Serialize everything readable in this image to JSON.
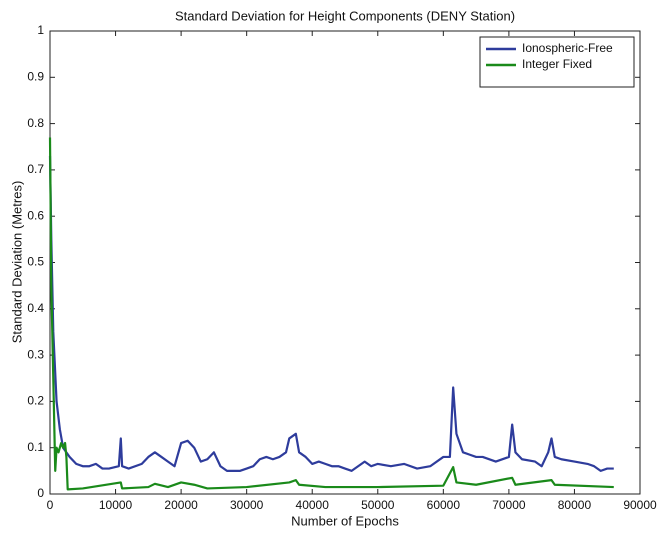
{
  "chart_data": {
    "type": "line",
    "title": "Standard Deviation for Height Components (DENY Station)",
    "xlabel": "Number of Epochs",
    "ylabel": "Standard Deviation (Metres)",
    "xlim": [
      0,
      90000
    ],
    "ylim": [
      0,
      1
    ],
    "xticks": [
      0,
      10000,
      20000,
      30000,
      40000,
      50000,
      60000,
      70000,
      80000,
      90000
    ],
    "yticks": [
      0,
      0.1,
      0.2,
      0.3,
      0.4,
      0.5,
      0.6,
      0.7,
      0.8,
      0.9,
      1
    ],
    "legend": "upper right",
    "series": [
      {
        "name": "Ionospheric-Free",
        "color": "#2e3c9c",
        "x": [
          0,
          200,
          500,
          1000,
          1500,
          2000,
          3000,
          4000,
          5000,
          6000,
          7000,
          8000,
          9000,
          10500,
          10800,
          11000,
          12000,
          14000,
          15000,
          16000,
          17000,
          18000,
          19000,
          20000,
          21000,
          22000,
          23000,
          24000,
          25000,
          26000,
          27000,
          29000,
          30000,
          31000,
          32000,
          33000,
          34000,
          35000,
          36000,
          36500,
          37500,
          38000,
          39000,
          40000,
          41000,
          42000,
          43000,
          44000,
          45000,
          46000,
          47000,
          48000,
          49000,
          50000,
          52000,
          54000,
          56000,
          58000,
          60000,
          61000,
          61500,
          62000,
          63000,
          64000,
          65000,
          66000,
          68000,
          70000,
          70500,
          71000,
          72000,
          74000,
          75000,
          76000,
          76500,
          77000,
          78000,
          80000,
          82000,
          83000,
          84000,
          85000,
          86000
        ],
        "values": [
          0.73,
          0.55,
          0.35,
          0.2,
          0.14,
          0.1,
          0.08,
          0.065,
          0.06,
          0.06,
          0.065,
          0.055,
          0.055,
          0.06,
          0.12,
          0.06,
          0.055,
          0.065,
          0.08,
          0.09,
          0.08,
          0.07,
          0.06,
          0.11,
          0.115,
          0.1,
          0.07,
          0.075,
          0.09,
          0.06,
          0.05,
          0.05,
          0.055,
          0.06,
          0.075,
          0.08,
          0.075,
          0.08,
          0.09,
          0.12,
          0.13,
          0.09,
          0.08,
          0.065,
          0.07,
          0.065,
          0.06,
          0.06,
          0.055,
          0.05,
          0.06,
          0.07,
          0.06,
          0.065,
          0.06,
          0.065,
          0.055,
          0.06,
          0.08,
          0.08,
          0.23,
          0.13,
          0.09,
          0.085,
          0.08,
          0.08,
          0.07,
          0.08,
          0.15,
          0.09,
          0.075,
          0.07,
          0.06,
          0.09,
          0.12,
          0.08,
          0.075,
          0.07,
          0.065,
          0.06,
          0.05,
          0.055,
          0.055
        ]
      },
      {
        "name": "Integer Fixed",
        "color": "#1a8a1a",
        "x": [
          0,
          200,
          500,
          800,
          1000,
          1300,
          1700,
          2000,
          2300,
          2500,
          2700,
          5000,
          10800,
          11000,
          15000,
          16000,
          18000,
          20000,
          22000,
          24000,
          30000,
          36500,
          37500,
          38000,
          42000,
          50000,
          60000,
          61500,
          62000,
          65000,
          70500,
          71000,
          76500,
          77000,
          86000
        ],
        "values": [
          0.77,
          0.45,
          0.25,
          0.05,
          0.1,
          0.09,
          0.11,
          0.1,
          0.11,
          0.08,
          0.01,
          0.012,
          0.025,
          0.012,
          0.015,
          0.022,
          0.015,
          0.025,
          0.02,
          0.012,
          0.015,
          0.025,
          0.03,
          0.02,
          0.015,
          0.015,
          0.018,
          0.058,
          0.025,
          0.02,
          0.035,
          0.02,
          0.03,
          0.02,
          0.015
        ]
      }
    ]
  }
}
